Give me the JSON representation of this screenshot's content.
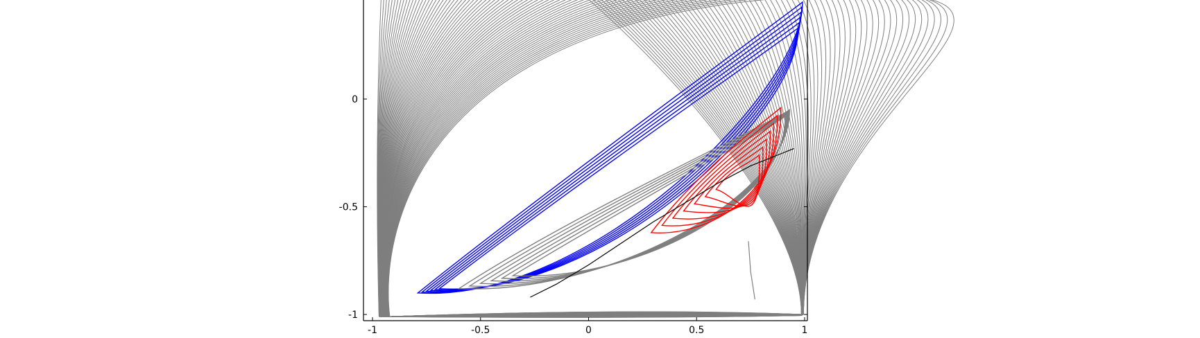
{
  "chart_data": {
    "type": "line",
    "title": "",
    "xlabel": "",
    "ylabel": "",
    "xlim": [
      -1.02,
      1.04
    ],
    "ylim": [
      -1.03,
      0.46
    ],
    "grid": false,
    "legend": "none",
    "x_ticks": [
      {
        "value": -1,
        "label": "-1"
      },
      {
        "value": -0.5,
        "label": "-0.5"
      },
      {
        "value": 0,
        "label": "0"
      },
      {
        "value": 0.5,
        "label": "0.5"
      },
      {
        "value": 1,
        "label": "1"
      }
    ],
    "y_ticks": [
      {
        "value": 0,
        "label": "0"
      },
      {
        "value": -0.5,
        "label": "-0.5"
      },
      {
        "value": -1,
        "label": "-1"
      }
    ],
    "colors": {
      "gray": "#7f7f7f",
      "blue": "#0000ff",
      "red": "#ff0000",
      "black": "#000000"
    },
    "series": [
      {
        "color": "gray",
        "kind": "open-fan",
        "count": 70,
        "description_points": "open curves from near (-1,-1) sweeping up the left side and across to the right edge near x=1"
      },
      {
        "color": "blue",
        "kind": "closed-loops",
        "count": 6,
        "x_range": [
          -0.8,
          0.99
        ],
        "y_range": [
          -0.92,
          0.45
        ]
      },
      {
        "color": "gray",
        "kind": "closed-loops",
        "count": 6,
        "x_range": [
          -0.85,
          0.9
        ],
        "y_range": [
          -0.9,
          -0.1
        ]
      },
      {
        "color": "red",
        "kind": "closed-loops",
        "count": 7,
        "x_range": [
          0.29,
          0.9
        ],
        "y_range": [
          -0.62,
          -0.03
        ]
      },
      {
        "color": "black",
        "kind": "locus-line",
        "x": [
          -0.27,
          -0.15,
          0.0,
          0.15,
          0.3,
          0.45,
          0.6,
          0.75,
          0.9,
          0.95
        ],
        "y": [
          -0.92,
          -0.86,
          -0.77,
          -0.67,
          -0.57,
          -0.48,
          -0.39,
          -0.31,
          -0.25,
          -0.23
        ]
      },
      {
        "color": "gray",
        "kind": "cusp-line",
        "x": [
          0.74,
          0.75,
          0.77
        ],
        "y": [
          -0.66,
          -0.8,
          -0.93
        ]
      }
    ]
  }
}
